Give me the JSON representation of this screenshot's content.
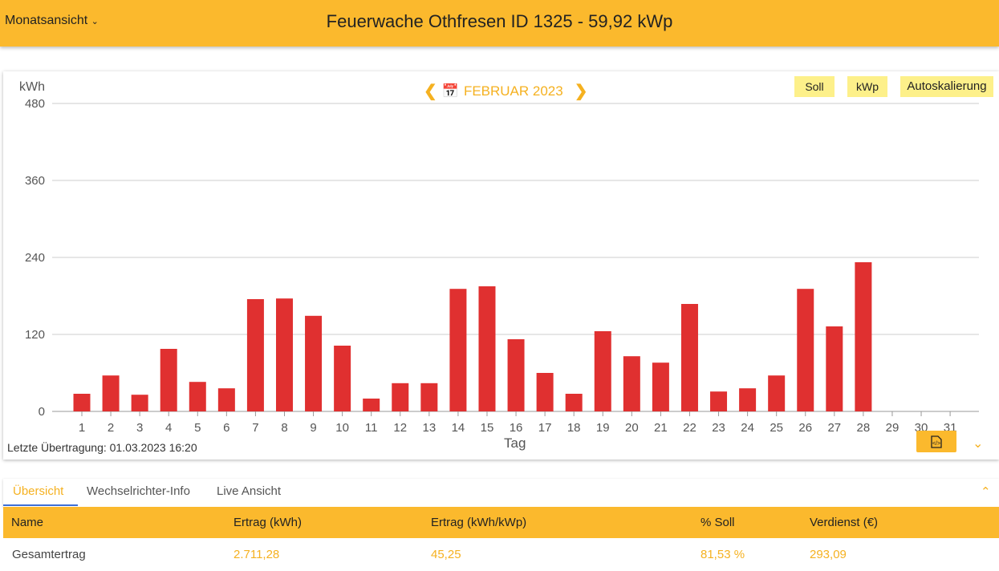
{
  "header": {
    "view_select": "Monatsansicht",
    "title": "Feuerwache Othfresen ID 1325 - 59,92 kWp"
  },
  "chart_card": {
    "unit": "kWh",
    "month": "FEBRUAR 2023",
    "buttons": [
      "Soll",
      "kWp",
      "Autoskalierung"
    ],
    "last_transfer": "Letzte Übertragung: 01.03.2023 16:20",
    "icons": {
      "prev": "chevron-left-icon",
      "next": "chevron-right-icon",
      "calendar": "calendar-icon",
      "export": "file-code-icon",
      "expand": "chevron-down-icon"
    }
  },
  "chart_data": {
    "type": "bar",
    "xlabel": "Tag",
    "ylabel": "kWh",
    "ylim": [
      0,
      480
    ],
    "yticks": [
      0,
      120,
      240,
      360,
      480
    ],
    "grid": true,
    "categories": [
      "1",
      "2",
      "3",
      "4",
      "5",
      "6",
      "7",
      "8",
      "9",
      "10",
      "11",
      "12",
      "13",
      "14",
      "15",
      "16",
      "17",
      "18",
      "19",
      "20",
      "21",
      "22",
      "23",
      "24",
      "25",
      "26",
      "27",
      "28",
      "29",
      "30",
      "31"
    ],
    "values": [
      27.5,
      56,
      26,
      97.5,
      46,
      36,
      175,
      176,
      149,
      102.5,
      20,
      44,
      44,
      191,
      195,
      112.5,
      60,
      27.5,
      125,
      86,
      76,
      167.5,
      31,
      36,
      56,
      191,
      132.5,
      232.5,
      null,
      null,
      null
    ],
    "color": "#e03030"
  },
  "tabs": [
    "Übersicht",
    "Wechselrichter-Info",
    "Live Ansicht"
  ],
  "table": {
    "headers": [
      "Name",
      "Ertrag (kWh)",
      "Ertrag (kWh/kWp)",
      "% Soll",
      "Verdienst (€)"
    ],
    "rows": [
      [
        "Gesamtertrag",
        "2.711,28",
        "45,25",
        "81,53 %",
        "293,09"
      ]
    ]
  },
  "colors": {
    "accent": "#fbb92d",
    "bar": "#e03030",
    "value": "#f5b120"
  }
}
